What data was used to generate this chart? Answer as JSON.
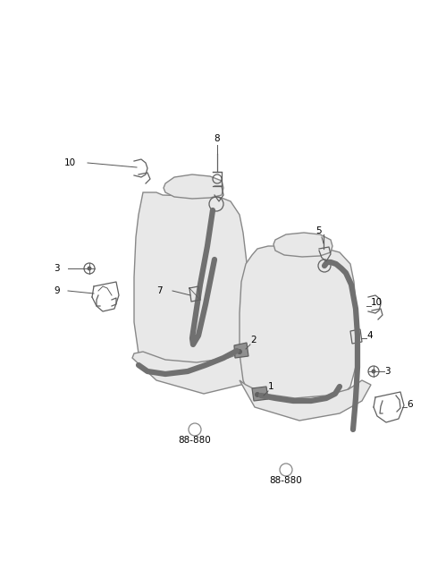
{
  "background_color": "#ffffff",
  "line_color": "#606060",
  "seat_edge_color": "#888888",
  "seat_fill": "#e8e8e8",
  "belt_color": "#707070",
  "part_color": "#909090",
  "text_color": "#000000",
  "figsize": [
    4.8,
    6.56
  ],
  "dpi": 100,
  "font_size": 7.5
}
